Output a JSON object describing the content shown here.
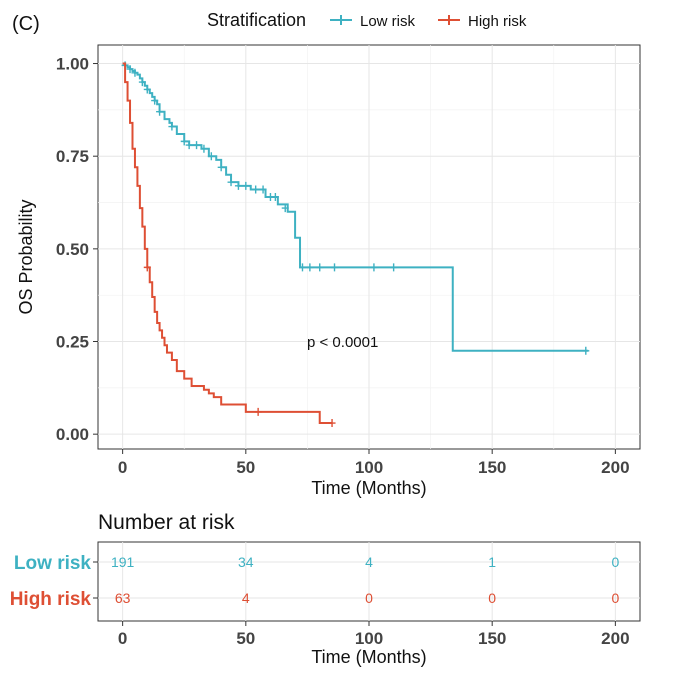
{
  "panel_label": "(C)",
  "legend": {
    "title": "Stratification",
    "entries": [
      {
        "name": "Low risk",
        "color": "#3eb1c2"
      },
      {
        "name": "High risk",
        "color": "#de4f34"
      }
    ]
  },
  "chart_data": [
    {
      "type": "line",
      "subtype": "kaplan-meier",
      "title": "",
      "xlabel": "Time (Months)",
      "ylabel": "OS Probability",
      "xlim": [
        -10,
        210
      ],
      "ylim": [
        -0.04,
        1.05
      ],
      "xticks": [
        0,
        50,
        100,
        150,
        200
      ],
      "yticks": [
        0.0,
        0.25,
        0.5,
        0.75,
        1.0
      ],
      "ytick_labels": [
        "0.00",
        "0.25",
        "0.50",
        "0.75",
        "1.00"
      ],
      "grid": true,
      "annotation": "p < 0.0001",
      "series": [
        {
          "name": "Low risk",
          "color": "#3eb1c2",
          "x": [
            0,
            1,
            2,
            3,
            4,
            5,
            6,
            7,
            8,
            9,
            10,
            11,
            12,
            13,
            14,
            15,
            17,
            19,
            20,
            22,
            25,
            27,
            30,
            32,
            35,
            38,
            40,
            42,
            44,
            47,
            52,
            58,
            63,
            67,
            70,
            72,
            134,
            189
          ],
          "y": [
            1.0,
            0.995,
            0.99,
            0.985,
            0.98,
            0.975,
            0.97,
            0.96,
            0.95,
            0.94,
            0.93,
            0.92,
            0.91,
            0.9,
            0.89,
            0.87,
            0.85,
            0.84,
            0.83,
            0.81,
            0.79,
            0.78,
            0.78,
            0.77,
            0.75,
            0.74,
            0.72,
            0.7,
            0.68,
            0.67,
            0.66,
            0.64,
            0.62,
            0.6,
            0.53,
            0.45,
            0.225,
            0.225
          ],
          "censors": [
            [
              1,
              0.995
            ],
            [
              3,
              0.985
            ],
            [
              5,
              0.975
            ],
            [
              8,
              0.95
            ],
            [
              10,
              0.93
            ],
            [
              13,
              0.9
            ],
            [
              15,
              0.87
            ],
            [
              20,
              0.83
            ],
            [
              25,
              0.79
            ],
            [
              27,
              0.78
            ],
            [
              30,
              0.78
            ],
            [
              33,
              0.77
            ],
            [
              36,
              0.75
            ],
            [
              40,
              0.72
            ],
            [
              44,
              0.68
            ],
            [
              47,
              0.67
            ],
            [
              50,
              0.67
            ],
            [
              54,
              0.66
            ],
            [
              57,
              0.66
            ],
            [
              60,
              0.64
            ],
            [
              62,
              0.64
            ],
            [
              66,
              0.61
            ],
            [
              73,
              0.45
            ],
            [
              76,
              0.45
            ],
            [
              80,
              0.45
            ],
            [
              86,
              0.45
            ],
            [
              102,
              0.45
            ],
            [
              110,
              0.45
            ],
            [
              188,
              0.225
            ]
          ]
        },
        {
          "name": "High risk",
          "color": "#de4f34",
          "x": [
            0,
            1,
            2,
            3,
            4,
            5,
            6,
            7,
            8,
            9,
            10,
            11,
            12,
            13,
            14,
            15,
            16,
            17,
            18,
            20,
            22,
            25,
            28,
            33,
            35,
            37,
            40,
            43,
            50,
            55,
            60,
            65,
            80,
            85
          ],
          "y": [
            1.0,
            0.95,
            0.9,
            0.84,
            0.77,
            0.72,
            0.67,
            0.61,
            0.56,
            0.5,
            0.45,
            0.41,
            0.37,
            0.33,
            0.3,
            0.28,
            0.26,
            0.24,
            0.22,
            0.2,
            0.17,
            0.15,
            0.13,
            0.12,
            0.11,
            0.1,
            0.08,
            0.08,
            0.06,
            0.06,
            0.06,
            0.06,
            0.03,
            0.03
          ],
          "censors": [
            [
              10,
              0.45
            ],
            [
              55,
              0.06
            ],
            [
              85,
              0.03
            ]
          ]
        }
      ]
    },
    {
      "type": "table",
      "title": "Number at risk",
      "xlabel": "Time (Months)",
      "xticks": [
        0,
        50,
        100,
        150,
        200
      ],
      "rows": [
        {
          "name": "Low risk",
          "color": "#3eb1c2",
          "values": [
            191,
            34,
            4,
            1,
            0
          ]
        },
        {
          "name": "High risk",
          "color": "#de4f34",
          "values": [
            63,
            4,
            0,
            0,
            0
          ]
        }
      ]
    }
  ]
}
